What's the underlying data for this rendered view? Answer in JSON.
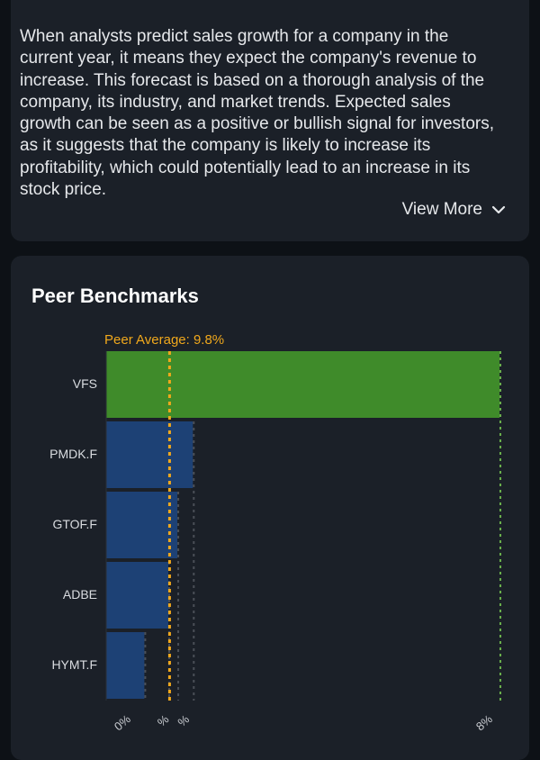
{
  "description": {
    "text": "When analysts predict sales growth for a company in the current year, it means they expect the company's revenue to increase. This forecast is based on a thorough analysis of the company, its industry, and market trends. Expected sales growth can be seen as a positive or bullish signal for investors, as it suggests that the company is likely to increase its profitability, which could potentially lead to an increase in its stock price.",
    "view_more_label": "View More",
    "view_more_icon": "chevron-down-icon"
  },
  "peer_benchmarks": {
    "title": "Peer Benchmarks",
    "peer_average_label": "Peer Average: 9.8%"
  },
  "colors": {
    "highlight_bar": "#3f8b2a",
    "peer_bar": "#1d4175",
    "peer_average_line": "#f0a81c",
    "card_background": "#1b2028"
  },
  "chart_data": {
    "type": "bar",
    "orientation": "horizontal",
    "categories": [
      "VFS",
      "PMDK.F",
      "GTOF.F",
      "ADBE",
      "HYMT.F"
    ],
    "values": [
      60.8,
      13.4,
      11.0,
      9.6,
      5.9
    ],
    "value_unit": "%",
    "highlight_category": "VFS",
    "peer_average": 9.8,
    "xlim": [
      0,
      61.5
    ],
    "tick_labels_visible": [
      "0%",
      "%",
      "%",
      "8%"
    ]
  }
}
